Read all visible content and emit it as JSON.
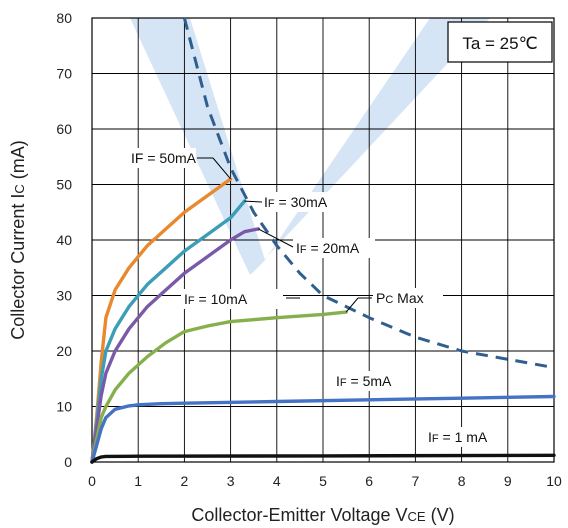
{
  "chart_data": {
    "type": "line",
    "xlabel": "Collector-Emitter  Voltage V",
    "xlabel_sub": "CE",
    "xlabel_unit": " (V)",
    "ylabel": "Collector Current I",
    "ylabel_sub": "C",
    "ylabel_unit": " (mA)",
    "xlim": [
      0,
      10
    ],
    "ylim": [
      0,
      80
    ],
    "xticks": [
      "0",
      "1",
      "2",
      "3",
      "4",
      "5",
      "6",
      "7",
      "8",
      "9",
      "10"
    ],
    "yticks": [
      "0",
      "10",
      "20",
      "30",
      "40",
      "50",
      "60",
      "70",
      "80"
    ],
    "grid": true,
    "condition_label": "Ta = 25℃",
    "colors": {
      "if50": "#e8892f",
      "if30": "#3c9db6",
      "if20": "#7a5aa8",
      "if10": "#86b04c",
      "if5": "#4472c4",
      "if1": "#111111",
      "pcmax": "#2f5f8f"
    },
    "series": [
      {
        "label": "IF = 50mA",
        "color_key": "if50",
        "x": [
          0,
          0.1,
          0.2,
          0.3,
          0.5,
          0.8,
          1.2,
          1.6,
          2.0,
          2.5,
          3.0
        ],
        "y": [
          0,
          8,
          18,
          26,
          31,
          35,
          39,
          42,
          45,
          48,
          51
        ]
      },
      {
        "label": "30mA",
        "prefix": "I",
        "sub": "F",
        "eq": " = ",
        "color_key": "if30",
        "x": [
          0,
          0.1,
          0.2,
          0.3,
          0.5,
          0.8,
          1.2,
          1.6,
          2.0,
          2.5,
          3.0,
          3.3
        ],
        "y": [
          0,
          7,
          15,
          20,
          24,
          28,
          32,
          35,
          38,
          41,
          44,
          47
        ]
      },
      {
        "label": "20mA",
        "prefix": "I",
        "sub": "F",
        "eq": " = ",
        "color_key": "if20",
        "x": [
          0,
          0.1,
          0.2,
          0.3,
          0.5,
          0.8,
          1.2,
          1.6,
          2.0,
          2.5,
          3.0,
          3.3,
          3.6
        ],
        "y": [
          0,
          6,
          12,
          16,
          20,
          24,
          28,
          31,
          34,
          37,
          40,
          41.5,
          42
        ]
      },
      {
        "label": "10mA",
        "prefix": "I",
        "sub": "F",
        "eq": " = ",
        "color_key": "if10",
        "x": [
          0,
          0.1,
          0.2,
          0.3,
          0.5,
          0.8,
          1.2,
          1.6,
          2.0,
          2.5,
          3.0,
          4.0,
          5.0,
          5.5
        ],
        "y": [
          0,
          4,
          8,
          10,
          13,
          16,
          19,
          21.5,
          23.5,
          24.5,
          25.3,
          26,
          26.6,
          27
        ]
      },
      {
        "label": "5mA",
        "prefix": "I",
        "sub": "F",
        "eq": " = ",
        "color_key": "if5",
        "x": [
          0,
          0.1,
          0.2,
          0.3,
          0.5,
          0.8,
          1.0,
          1.5,
          2.0,
          4.0,
          6.0,
          8.0,
          10.0
        ],
        "y": [
          0,
          3,
          6,
          8,
          9.5,
          10.1,
          10.3,
          10.5,
          10.6,
          10.9,
          11.2,
          11.5,
          11.8
        ]
      },
      {
        "label": "1 mA",
        "prefix": "I",
        "sub": "F",
        "eq": " = ",
        "color_key": "if1",
        "x": [
          0,
          0.05,
          0.1,
          0.2,
          0.3,
          1.0,
          5.0,
          10.0
        ],
        "y": [
          0,
          0.3,
          0.6,
          0.9,
          1.0,
          1.05,
          1.1,
          1.2
        ]
      },
      {
        "label": "Max",
        "prefix": "P",
        "sub": "C",
        "eq": " ",
        "style": "dashed",
        "color_key": "pcmax",
        "x": [
          2.0,
          2.5,
          3.0,
          3.5,
          4.0,
          4.5,
          5.0,
          6.0,
          7.0,
          8.0,
          9.0,
          10.0
        ],
        "y": [
          80,
          64,
          53,
          45,
          39,
          34,
          30,
          26,
          22.5,
          20,
          18.5,
          17
        ]
      }
    ]
  }
}
